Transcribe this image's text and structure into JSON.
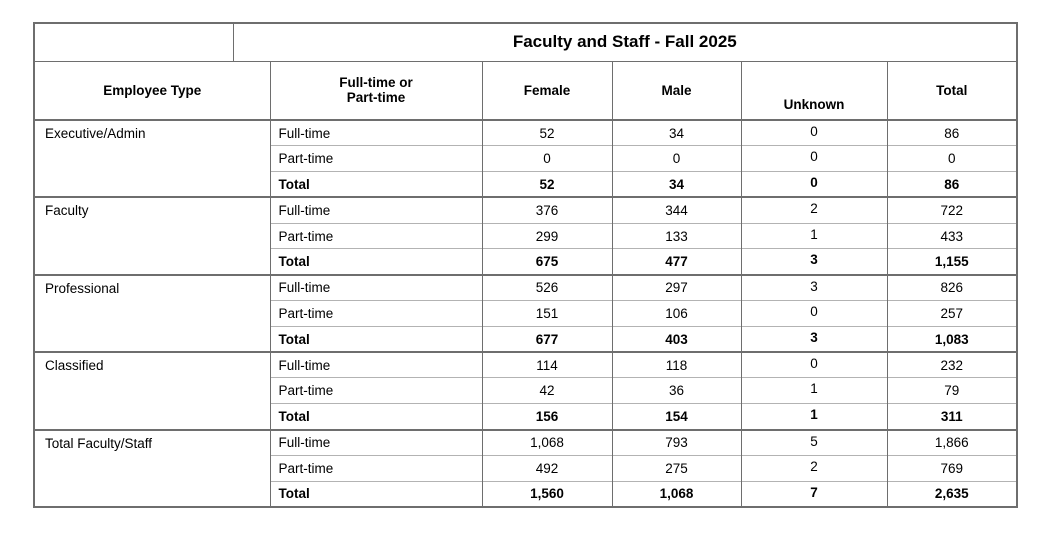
{
  "table": {
    "title": "Faculty and Staff - Fall 2025",
    "headers": {
      "employee_type": "Employee Type",
      "ft_pt": "Full-time or\nPart-time",
      "female": "Female",
      "male": "Male",
      "unknown": "Unknown",
      "total": "Total"
    },
    "groups": [
      {
        "employee_type": "Executive/Admin",
        "rows": [
          {
            "label": "Full-time",
            "female": "52",
            "male": "34",
            "unknown": "0",
            "total": "86",
            "bold": false
          },
          {
            "label": "Part-time",
            "female": "0",
            "male": "0",
            "unknown": "0",
            "total": "0",
            "bold": false
          },
          {
            "label": "Total",
            "female": "52",
            "male": "34",
            "unknown": "0",
            "total": "86",
            "bold": true
          }
        ]
      },
      {
        "employee_type": "Faculty",
        "rows": [
          {
            "label": "Full-time",
            "female": "376",
            "male": "344",
            "unknown": "2",
            "total": "722",
            "bold": false
          },
          {
            "label": "Part-time",
            "female": "299",
            "male": "133",
            "unknown": "1",
            "total": "433",
            "bold": false
          },
          {
            "label": "Total",
            "female": "675",
            "male": "477",
            "unknown": "3",
            "total": "1,155",
            "bold": true
          }
        ]
      },
      {
        "employee_type": "Professional",
        "rows": [
          {
            "label": "Full-time",
            "female": "526",
            "male": "297",
            "unknown": "3",
            "total": "826",
            "bold": false
          },
          {
            "label": "Part-time",
            "female": "151",
            "male": "106",
            "unknown": "0",
            "total": "257",
            "bold": false
          },
          {
            "label": "Total",
            "female": "677",
            "male": "403",
            "unknown": "3",
            "total": "1,083",
            "bold": true
          }
        ]
      },
      {
        "employee_type": "Classified",
        "rows": [
          {
            "label": "Full-time",
            "female": "114",
            "male": "118",
            "unknown": "0",
            "total": "232",
            "bold": false
          },
          {
            "label": "Part-time",
            "female": "42",
            "male": "36",
            "unknown": "1",
            "total": "79",
            "bold": false
          },
          {
            "label": "Total",
            "female": "156",
            "male": "154",
            "unknown": "1",
            "total": "311",
            "bold": true
          }
        ]
      },
      {
        "employee_type": "Total Faculty/Staff",
        "rows": [
          {
            "label": "Full-time",
            "female": "1,068",
            "male": "793",
            "unknown": "5",
            "total": "1,866",
            "bold": false
          },
          {
            "label": "Part-time",
            "female": "492",
            "male": "275",
            "unknown": "2",
            "total": "769",
            "bold": false
          },
          {
            "label": "Total",
            "female": "1,560",
            "male": "1,068",
            "unknown": "7",
            "total": "2,635",
            "bold": true
          }
        ]
      }
    ]
  },
  "colors": {
    "border_dark": "#6e6e6e",
    "border_light": "#b3b3b3",
    "text": "#000000",
    "background": "#ffffff"
  }
}
